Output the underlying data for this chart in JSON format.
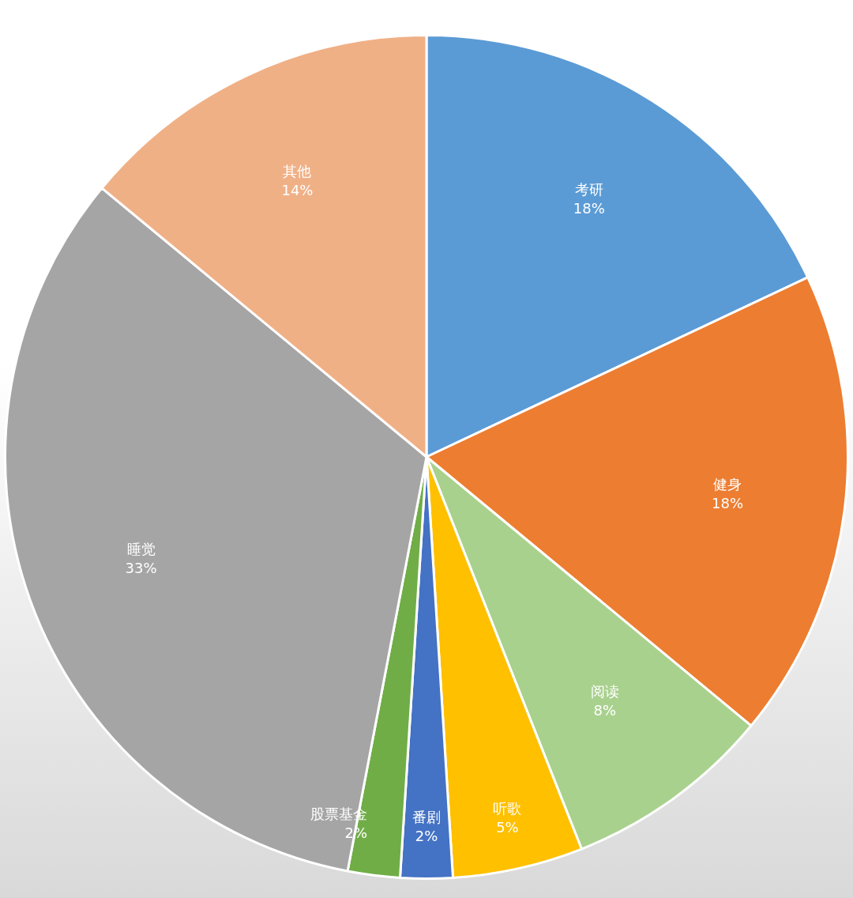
{
  "chart_data": {
    "type": "pie",
    "categories": [
      "考研",
      "健身",
      "阅读",
      "听歌",
      "番剧",
      "股票基金",
      "睡觉",
      "其他"
    ],
    "values": [
      18,
      18,
      8,
      5,
      2,
      2,
      33,
      14
    ],
    "colors": [
      "#5b9bd5",
      "#ed7d31",
      "#a9d18e",
      "#ffc000",
      "#4472c4",
      "#70ad47",
      "#a5a5a5",
      "#f0b086"
    ],
    "value_labels": [
      "18%",
      "18%",
      "8%",
      "5%",
      "2%",
      "2%",
      "33%",
      "14%"
    ],
    "legend": false
  }
}
